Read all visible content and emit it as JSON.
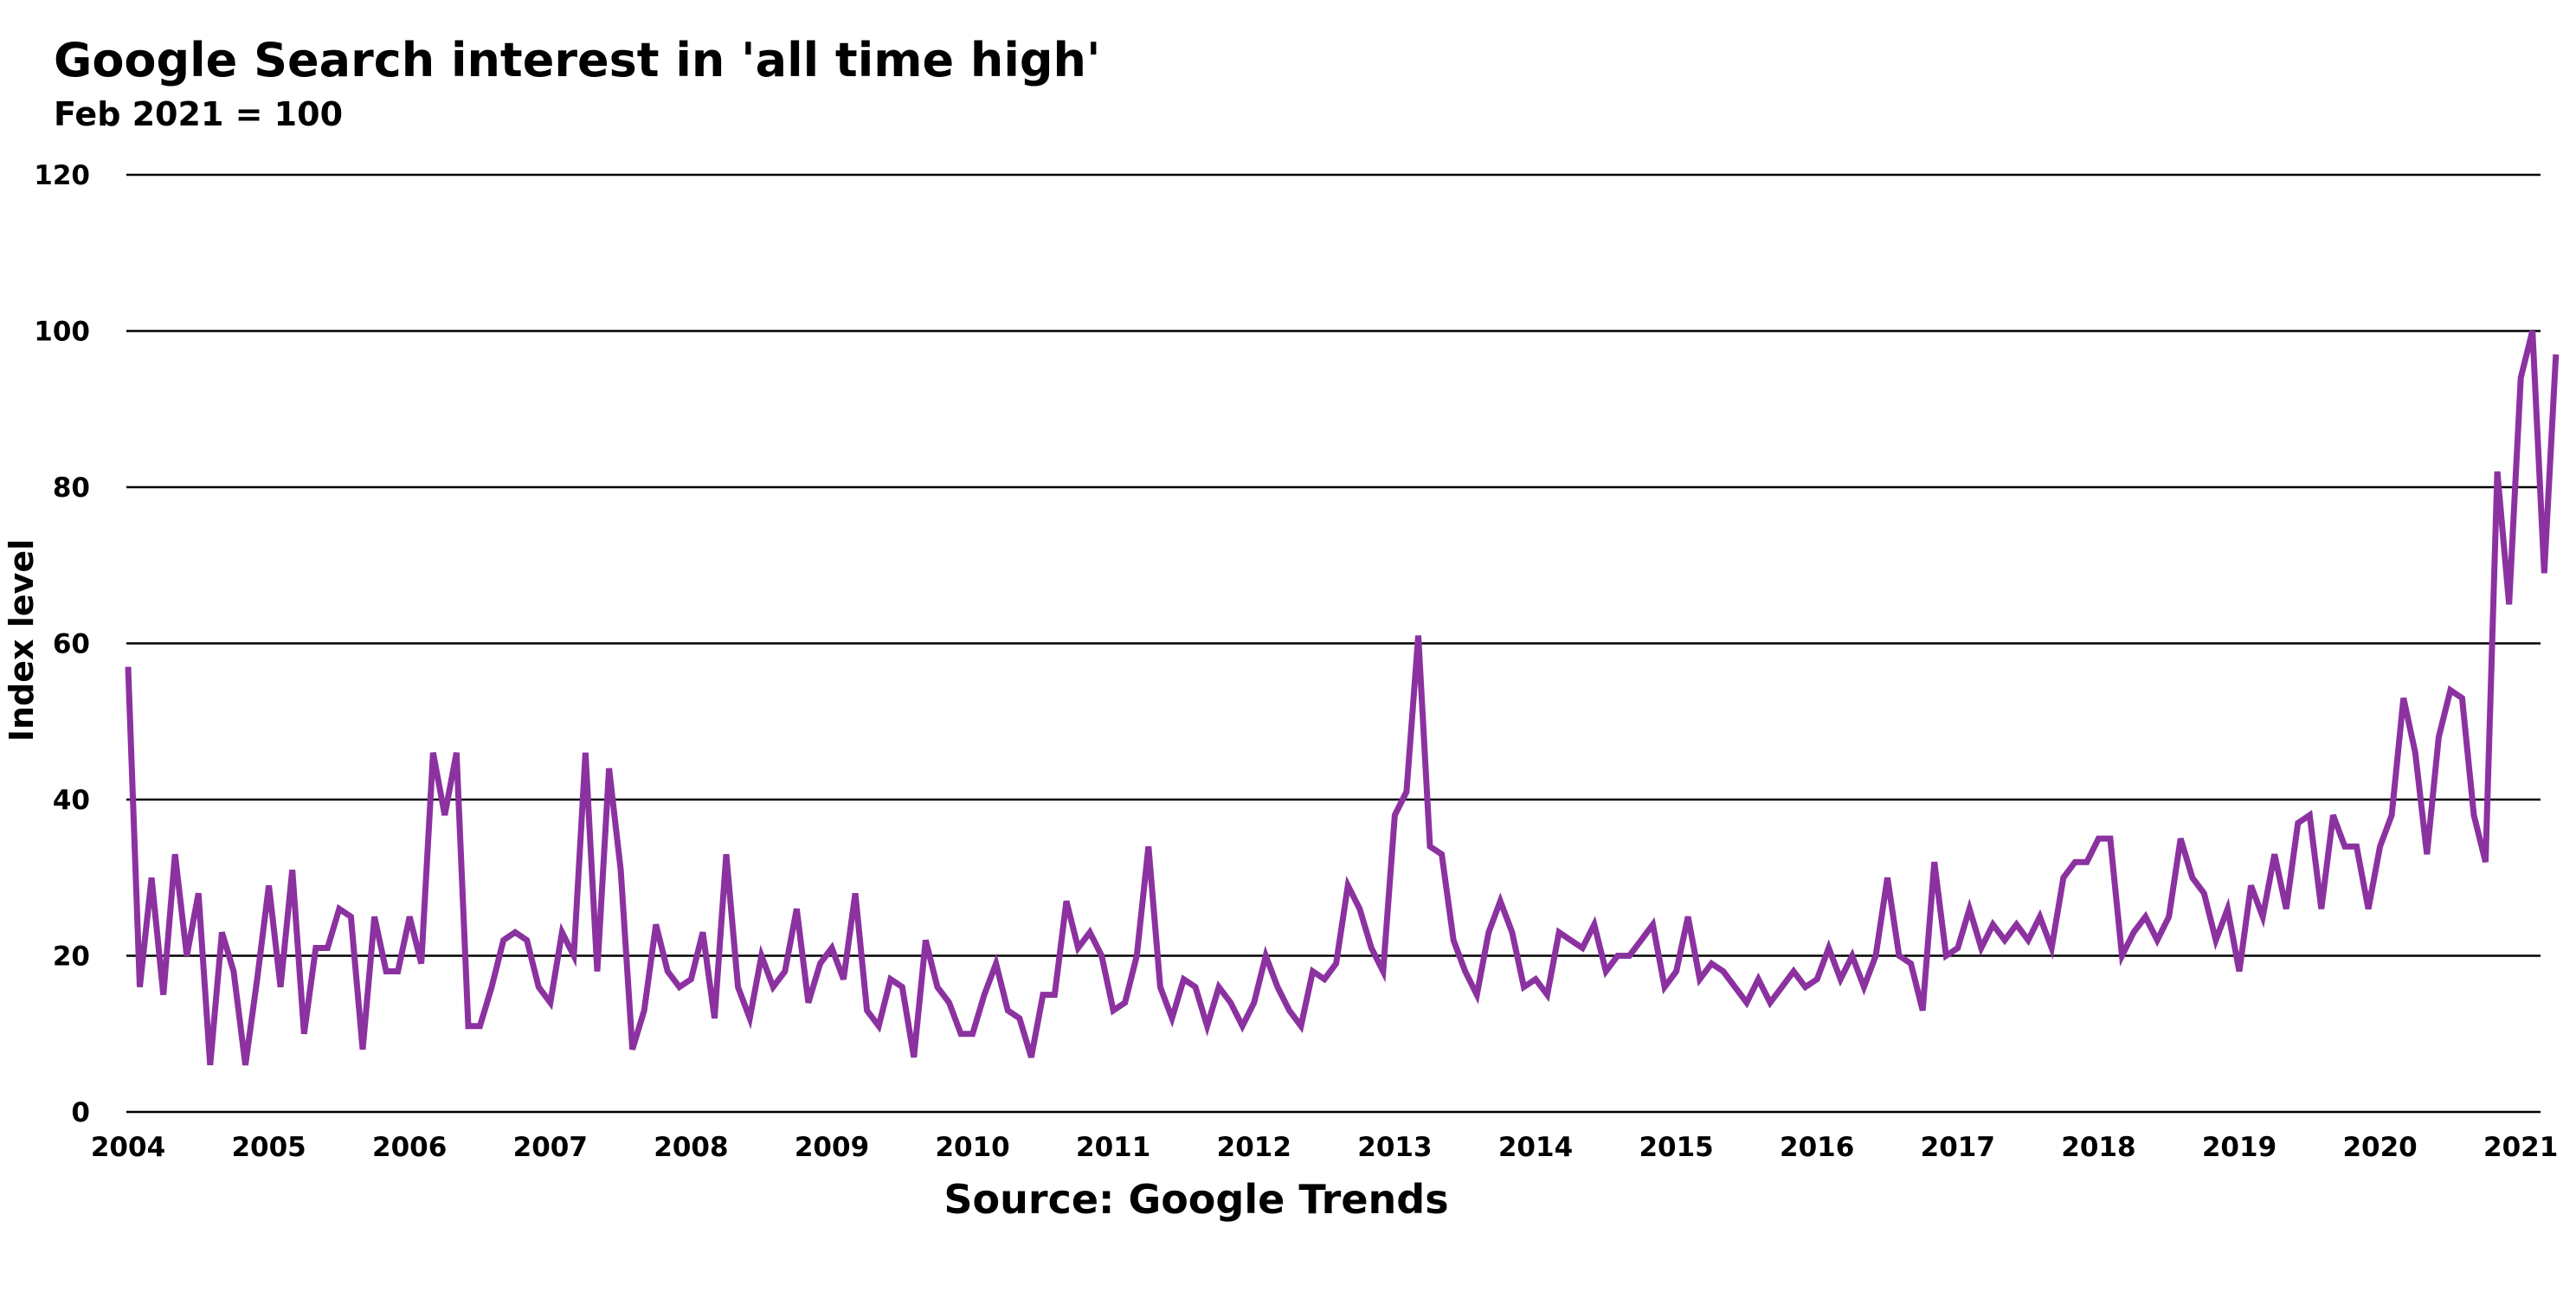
{
  "chart_data": {
    "type": "line",
    "title": "Google Search interest in 'all time high'",
    "subtitle": "Feb 2021 = 100",
    "xlabel": "",
    "ylabel": "Index level",
    "source": "Source: Google Trends",
    "ylim": [
      0,
      120
    ],
    "xlim": [
      2004,
      2021.25
    ],
    "y_ticks": [
      0,
      20,
      40,
      60,
      80,
      100,
      120
    ],
    "y_tick_labels": [
      "0",
      "20",
      "40",
      "60",
      "80",
      "100",
      "120"
    ],
    "x_ticks": [
      2004,
      2005,
      2006,
      2007,
      2008,
      2009,
      2010,
      2011,
      2012,
      2013,
      2014,
      2015,
      2016,
      2017,
      2018,
      2019,
      2020,
      2021
    ],
    "x_tick_labels": [
      "2004",
      "2005",
      "2006",
      "2007",
      "2008",
      "2009",
      "2010",
      "2011",
      "2012",
      "2013",
      "2014",
      "2015",
      "2016",
      "2017",
      "2018",
      "2019",
      "2020",
      "2021"
    ],
    "grid": true,
    "legend": "none",
    "series": [
      {
        "color": "#8B32A0",
        "x_start": "2004-01",
        "x_step": "month",
        "values": [
          57,
          16,
          30,
          15,
          33,
          20,
          28,
          6,
          23,
          18,
          6,
          17,
          29,
          16,
          31,
          10,
          21,
          21,
          26,
          25,
          8,
          25,
          18,
          18,
          25,
          19,
          46,
          38,
          46,
          11,
          11,
          16,
          22,
          23,
          22,
          16,
          14,
          23,
          20,
          46,
          18,
          44,
          31,
          8,
          13,
          24,
          18,
          16,
          17,
          23,
          12,
          33,
          16,
          12,
          20,
          16,
          18,
          26,
          14,
          19,
          21,
          17,
          28,
          13,
          11,
          17,
          16,
          7,
          22,
          16,
          14,
          10,
          10,
          15,
          19,
          13,
          12,
          7,
          15,
          15,
          27,
          21,
          23,
          20,
          13,
          14,
          20,
          34,
          16,
          12,
          17,
          16,
          11,
          16,
          14,
          11,
          14,
          20,
          16,
          13,
          11,
          18,
          17,
          19,
          29,
          26,
          21,
          18,
          38,
          41,
          61,
          34,
          33,
          22,
          18,
          15,
          23,
          27,
          23,
          16,
          17,
          15,
          23,
          22,
          21,
          24,
          18,
          20,
          20,
          22,
          24,
          16,
          18,
          25,
          17,
          19,
          18,
          16,
          14,
          17,
          14,
          16,
          18,
          16,
          17,
          21,
          17,
          20,
          16,
          20,
          30,
          20,
          19,
          13,
          32,
          20,
          21,
          26,
          21,
          24,
          22,
          24,
          22,
          25,
          21,
          30,
          32,
          32,
          35,
          35,
          20,
          23,
          25,
          22,
          25,
          35,
          30,
          28,
          22,
          26,
          18,
          29,
          25,
          33,
          26,
          37,
          38,
          26,
          38,
          34,
          34,
          26,
          34,
          38,
          53,
          46,
          33,
          48,
          54,
          53,
          38,
          32,
          82,
          65,
          94,
          100,
          69,
          97
        ]
      }
    ]
  }
}
